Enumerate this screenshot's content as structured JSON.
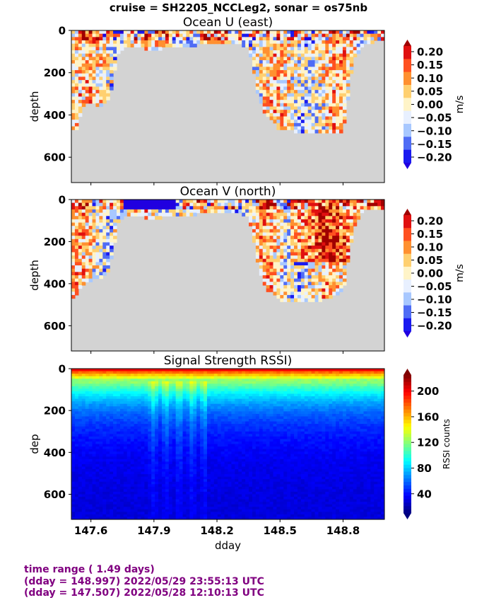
{
  "suptitle": "cruise = SH2205_NCCLeg2,  sonar = os75nb",
  "footer": {
    "line1": "time range ( 1.49 days)",
    "line2": "(dday = 148.997) 2022/05/29 23:55:13 UTC",
    "line3": "(dday = 147.507) 2022/05/28 12:10:13 UTC"
  },
  "colors": {
    "nodata": "#d3d3d3",
    "velocity_levels": [
      "#2000e0",
      "#1a1af0",
      "#4f6cf5",
      "#a8c8ff",
      "#e8f0ff",
      "#fff4c8",
      "#ffd070",
      "#ff9030",
      "#ff5020",
      "#e01010",
      "#a00000"
    ],
    "jet": [
      "#00007f",
      "#0000ff",
      "#007fff",
      "#00ffff",
      "#7fff7f",
      "#ffff00",
      "#ff7f00",
      "#ff0000",
      "#7f0000"
    ]
  },
  "chart_data": [
    {
      "type": "heatmap",
      "title": "Ocean U (east)",
      "xlabel": "",
      "ylabel": "depth",
      "xlim": [
        147.507,
        148.997
      ],
      "ylim": [
        720,
        0
      ],
      "yticks": [
        "0",
        "200",
        "400",
        "600"
      ],
      "colorbar": {
        "label": "m/s",
        "ticks": [
          "0.20",
          "0.15",
          "0.10",
          "0.05",
          "0.00",
          "−0.05",
          "−0.10",
          "−0.15",
          "−0.20"
        ],
        "range": [
          -0.2,
          0.2
        ]
      },
      "profile_depth": [
        [
          147.507,
          480
        ],
        [
          147.53,
          470
        ],
        [
          147.57,
          340
        ],
        [
          147.65,
          360
        ],
        [
          147.69,
          320
        ],
        [
          147.73,
          110
        ],
        [
          147.77,
          80
        ],
        [
          147.9,
          90
        ],
        [
          148.0,
          80
        ],
        [
          148.1,
          70
        ],
        [
          148.2,
          70
        ],
        [
          148.28,
          60
        ],
        [
          148.35,
          80
        ],
        [
          148.4,
          330
        ],
        [
          148.43,
          400
        ],
        [
          148.5,
          470
        ],
        [
          148.6,
          480
        ],
        [
          148.7,
          480
        ],
        [
          148.8,
          480
        ],
        [
          148.85,
          140
        ],
        [
          148.9,
          70
        ],
        [
          148.997,
          40
        ]
      ],
      "dominant_value": 0.0
    },
    {
      "type": "heatmap",
      "title": "Ocean V (north)",
      "xlabel": "",
      "ylabel": "depth",
      "xlim": [
        147.507,
        148.997
      ],
      "ylim": [
        720,
        0
      ],
      "yticks": [
        "0",
        "200",
        "400",
        "600"
      ],
      "colorbar": {
        "label": "m/s",
        "ticks": [
          "0.20",
          "0.15",
          "0.10",
          "0.05",
          "0.00",
          "−0.05",
          "−0.10",
          "−0.15",
          "−0.20"
        ],
        "range": [
          -0.2,
          0.2
        ]
      },
      "profile_depth": [
        [
          147.507,
          480
        ],
        [
          147.53,
          450
        ],
        [
          147.57,
          400
        ],
        [
          147.65,
          370
        ],
        [
          147.69,
          330
        ],
        [
          147.73,
          110
        ],
        [
          147.77,
          80
        ],
        [
          147.9,
          90
        ],
        [
          148.0,
          80
        ],
        [
          148.1,
          70
        ],
        [
          148.2,
          70
        ],
        [
          148.28,
          60
        ],
        [
          148.35,
          80
        ],
        [
          148.4,
          330
        ],
        [
          148.43,
          420
        ],
        [
          148.5,
          480
        ],
        [
          148.6,
          480
        ],
        [
          148.7,
          480
        ],
        [
          148.8,
          440
        ],
        [
          148.85,
          140
        ],
        [
          148.9,
          50
        ],
        [
          148.997,
          40
        ]
      ],
      "dominant_value": 0.0
    },
    {
      "type": "heatmap",
      "title": "Signal Strength RSSI)",
      "xlabel": "dday",
      "ylabel": "dep",
      "xlim": [
        147.507,
        148.997
      ],
      "ylim": [
        720,
        0
      ],
      "yticks": [
        "0",
        "200",
        "400",
        "600"
      ],
      "xticks": [
        "147.6",
        "147.9",
        "148.2",
        "148.5",
        "148.8"
      ],
      "xtick_values": [
        147.6,
        147.9,
        148.2,
        148.5,
        148.8
      ],
      "colorbar": {
        "label": "RSSI counts",
        "ticks": [
          "200",
          "160",
          "120",
          "80",
          "40"
        ],
        "tick_values": [
          200,
          160,
          120,
          80,
          40
        ],
        "range": [
          10,
          225
        ]
      },
      "surface_value": 200,
      "deep_value": 40
    }
  ]
}
